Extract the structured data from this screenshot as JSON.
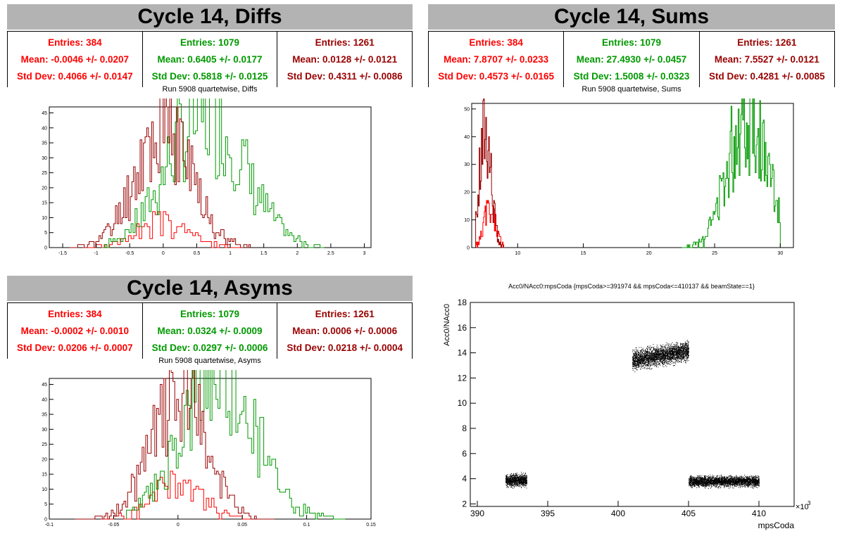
{
  "panels": {
    "diffs": {
      "banner": "Cycle 14, Diffs",
      "stats": [
        {
          "entries": "Entries: 384",
          "mean": "Mean: -0.0046 +/- 0.0207",
          "std": "Std Dev: 0.4066 +/- 0.0147",
          "color": "#ff0000"
        },
        {
          "entries": "Entries: 1079",
          "mean": "Mean: 0.6405 +/- 0.0177",
          "std": "Std Dev: 0.5818 +/- 0.0125",
          "color": "#009900"
        },
        {
          "entries": "Entries: 1261",
          "mean": "Mean: 0.0128 +/- 0.0121",
          "std": "Std Dev: 0.4311 +/- 0.0086",
          "color": "#990000"
        }
      ],
      "subtitle": "Run 5908 quartetwise, Diffs"
    },
    "sums": {
      "banner": "Cycle 14, Sums",
      "stats": [
        {
          "entries": "Entries: 384",
          "mean": "Mean: 7.8707 +/- 0.0233",
          "std": "Std Dev: 0.4573 +/- 0.0165",
          "color": "#ff0000"
        },
        {
          "entries": "Entries: 1079",
          "mean": "Mean: 27.4930 +/- 0.0457",
          "std": "Std Dev: 1.5008 +/- 0.0323",
          "color": "#009900"
        },
        {
          "entries": "Entries: 1261",
          "mean": "Mean: 7.5527 +/- 0.0121",
          "std": "Std Dev: 0.4281 +/- 0.0085",
          "color": "#990000"
        }
      ],
      "subtitle": "Run 5908 quartetwise, Sums"
    },
    "asyms": {
      "banner": "Cycle 14, Asyms",
      "stats": [
        {
          "entries": "Entries: 384",
          "mean": "Mean: -0.0002 +/- 0.0010",
          "std": "Std Dev: 0.0206 +/- 0.0007",
          "color": "#ff0000"
        },
        {
          "entries": "Entries: 1079",
          "mean": "Mean: 0.0324 +/- 0.0009",
          "std": "Std Dev: 0.0297 +/- 0.0006",
          "color": "#009900"
        },
        {
          "entries": "Entries: 1261",
          "mean": "Mean: 0.0006 +/- 0.0006",
          "std": "Std Dev: 0.0218 +/- 0.0004",
          "color": "#990000"
        }
      ],
      "subtitle": "Run 5908 quartetwise, Asyms"
    }
  },
  "chart_data": [
    {
      "id": "diffs",
      "type": "histogram",
      "title": "Run 5908 quartetwise, Diffs",
      "xlim": [
        -1.7,
        3.1
      ],
      "ylim": [
        0,
        47
      ],
      "xticks": [
        "-1.5",
        "-1",
        "-0.5",
        "0",
        "0.5",
        "1",
        "1.5",
        "2",
        "2.5",
        "3"
      ],
      "xtick_values": [
        -1.5,
        -1,
        -0.5,
        0,
        0.5,
        1,
        1.5,
        2,
        2.5,
        3
      ],
      "yticks": [
        "0",
        "5",
        "10",
        "15",
        "20",
        "25",
        "30",
        "35",
        "40",
        "45"
      ],
      "ytick_values": [
        0,
        5,
        10,
        15,
        20,
        25,
        30,
        35,
        40,
        45
      ],
      "series": [
        {
          "color": "#ff0000",
          "mean": -0.0046,
          "std": 0.4066,
          "n": 384,
          "peak": 9,
          "bins": 60,
          "range": [
            -1.2,
            1.2
          ],
          "seed": 3
        },
        {
          "color": "#009900",
          "mean": 0.6405,
          "std": 0.5818,
          "n": 1079,
          "peak": 45,
          "bins": 110,
          "range": [
            -0.9,
            2.4
          ],
          "seed": 7
        },
        {
          "color": "#990000",
          "mean": 0.0128,
          "std": 0.4311,
          "n": 1261,
          "peak": 40,
          "bins": 110,
          "range": [
            -1.4,
            1.3
          ],
          "seed": 11
        }
      ]
    },
    {
      "id": "sums",
      "type": "histogram",
      "title": "Run 5908 quartetwise, Sums",
      "xlim": [
        6.5,
        31
      ],
      "ylim": [
        0,
        52
      ],
      "xticks": [
        "10",
        "15",
        "20",
        "25",
        "30"
      ],
      "xtick_values": [
        10,
        15,
        20,
        25,
        30
      ],
      "yticks": [
        "0",
        "10",
        "20",
        "30",
        "40",
        "50"
      ],
      "ytick_values": [
        0,
        10,
        20,
        30,
        40,
        50
      ],
      "series": [
        {
          "color": "#ff0000",
          "mean": 7.8707,
          "std": 0.4573,
          "n": 384,
          "peak": 14,
          "bins": 40,
          "range": [
            6.8,
            9.0
          ],
          "seed": 5
        },
        {
          "color": "#009900",
          "mean": 27.493,
          "std": 1.5008,
          "n": 1079,
          "peak": 50,
          "bins": 110,
          "range": [
            22.5,
            30.0
          ],
          "seed": 13
        },
        {
          "color": "#990000",
          "mean": 7.5527,
          "std": 0.4281,
          "n": 1261,
          "peak": 45,
          "bins": 40,
          "range": [
            6.8,
            9.0
          ],
          "seed": 17
        }
      ]
    },
    {
      "id": "asyms",
      "type": "histogram",
      "title": "Run 5908 quartetwise, Asyms",
      "xlim": [
        -0.1,
        0.15
      ],
      "ylim": [
        0,
        47
      ],
      "xticks": [
        "-0.1",
        "-0.05",
        "0",
        "0.05",
        "0.1",
        "0.15"
      ],
      "xtick_values": [
        -0.1,
        -0.05,
        0,
        0.05,
        0.1,
        0.15
      ],
      "yticks": [
        "0",
        "5",
        "10",
        "15",
        "20",
        "25",
        "30",
        "35",
        "40",
        "45"
      ],
      "ytick_values": [
        0,
        5,
        10,
        15,
        20,
        25,
        30,
        35,
        40,
        45
      ],
      "series": [
        {
          "color": "#ff0000",
          "mean": -0.0002,
          "std": 0.0206,
          "n": 384,
          "peak": 12,
          "bins": 60,
          "range": [
            -0.06,
            0.06
          ],
          "seed": 19
        },
        {
          "color": "#009900",
          "mean": 0.0324,
          "std": 0.0297,
          "n": 1079,
          "peak": 46,
          "bins": 110,
          "range": [
            -0.04,
            0.13
          ],
          "seed": 23
        },
        {
          "color": "#990000",
          "mean": 0.0006,
          "std": 0.0218,
          "n": 1261,
          "peak": 41,
          "bins": 110,
          "range": [
            -0.08,
            0.075
          ],
          "seed": 29
        }
      ]
    },
    {
      "id": "scatter",
      "type": "scatter",
      "title": "Acc0/NAcc0:mpsCoda {mpsCoda>=391974 && mpsCoda<=410137 && beamState==1}",
      "xlabel": "mpsCoda",
      "ylabel": "Acc0/NAcc0",
      "xscale_label": "×10",
      "xscale_exp": "3",
      "xlim": [
        389.5,
        412.5
      ],
      "ylim": [
        1.8,
        18
      ],
      "xticks": [
        "390",
        "395",
        "400",
        "405",
        "410"
      ],
      "xtick_values": [
        390,
        395,
        400,
        405,
        410
      ],
      "yticks": [
        "2",
        "4",
        "6",
        "8",
        "10",
        "12",
        "14",
        "16",
        "18"
      ],
      "ytick_values": [
        2,
        4,
        6,
        8,
        10,
        12,
        14,
        16,
        18
      ],
      "clusters": [
        {
          "x": [
            392.0,
            393.5
          ],
          "y_center": 3.9,
          "y_spread": 0.35,
          "count": 900,
          "seed": 31
        },
        {
          "x": [
            401.0,
            405.0
          ],
          "y_center": 13.8,
          "y_spread": 0.55,
          "count": 2400,
          "seed": 37,
          "slope": 0.18
        },
        {
          "x": [
            405.0,
            410.0
          ],
          "y_center": 3.8,
          "y_spread": 0.3,
          "count": 2600,
          "seed": 41
        }
      ]
    }
  ]
}
